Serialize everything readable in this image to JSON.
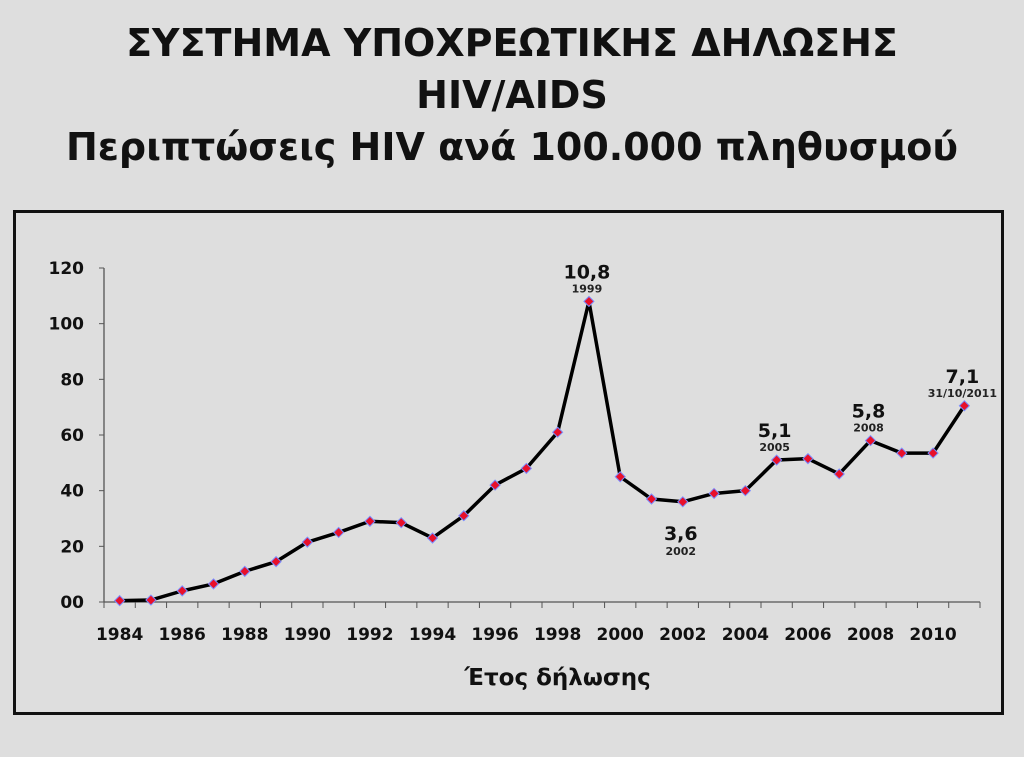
{
  "title_lines": [
    "ΣΥΣΤΗΜΑ ΥΠΟΧΡΕΩΤΙΚΗΣ ΔΗΛΩΣΗΣ",
    "HIV/AIDS",
    "Περιπτώσεις HIV ανά 100.000 πληθυσμού"
  ],
  "colors": {
    "line": "#000000",
    "marker": "#e8102a",
    "marker_edge": "#7a8cff",
    "background": "#dedede"
  },
  "chart_data": {
    "type": "line",
    "xlabel": "Έτος δήλωσης",
    "ylabel": "",
    "ylim": [
      0,
      120
    ],
    "yticks": [
      "00",
      "20",
      "40",
      "60",
      "80",
      "100",
      "120"
    ],
    "xtick_labels": [
      "1984",
      "1986",
      "1988",
      "1990",
      "1992",
      "1994",
      "1996",
      "1998",
      "2000",
      "2002",
      "2004",
      "2006",
      "2008",
      "2010"
    ],
    "grid": false,
    "x": [
      1984,
      1985,
      1986,
      1987,
      1988,
      1989,
      1990,
      1991,
      1992,
      1993,
      1994,
      1995,
      1996,
      1997,
      1998,
      1999,
      2000,
      2001,
      2002,
      2003,
      2004,
      2005,
      2006,
      2007,
      2008,
      2009,
      2010,
      2011
    ],
    "values": [
      0.5,
      0.7,
      4,
      6.5,
      11,
      14.5,
      21.5,
      25,
      29,
      28.5,
      23,
      31,
      42,
      48,
      61,
      108,
      45,
      37,
      36,
      39,
      40,
      51,
      51.5,
      46,
      58,
      53.5,
      53.5,
      70.5
    ],
    "annotations": [
      {
        "x": 1999,
        "value": "10,8",
        "sub": "1999",
        "pos": "above"
      },
      {
        "x": 2002,
        "value": "3,6",
        "sub": "2002",
        "pos": "below"
      },
      {
        "x": 2005,
        "value": "5,1",
        "sub": "2005",
        "pos": "above"
      },
      {
        "x": 2008,
        "value": "5,8",
        "sub": "2008",
        "pos": "above"
      },
      {
        "x": 2011,
        "value": "7,1",
        "sub": "31/10/2011",
        "pos": "above"
      }
    ]
  }
}
